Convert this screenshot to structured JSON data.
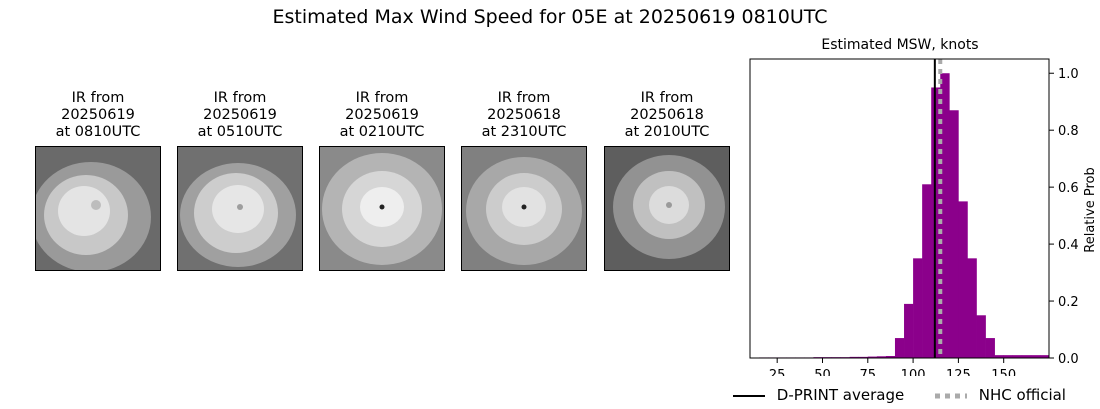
{
  "title": "Estimated Max Wind Speed for 05E at 20250619 0810UTC",
  "ir_panels": [
    {
      "caption": "IR from\n20250619\nat 0810UTC"
    },
    {
      "caption": "IR from\n20250619\nat 0510UTC"
    },
    {
      "caption": "IR from\n20250619\nat 0210UTC"
    },
    {
      "caption": "IR from\n20250618\nat 2310UTC"
    },
    {
      "caption": "IR from\n20250618\nat 2010UTC"
    }
  ],
  "chart_data": {
    "type": "bar",
    "title": "Estimated MSW, knots",
    "xlabel": "",
    "ylabel": "Relative Prob",
    "xlim": [
      10,
      175
    ],
    "ylim": [
      0,
      1.05
    ],
    "x_ticks": [
      25,
      50,
      75,
      100,
      125,
      150
    ],
    "y_ticks": [
      0.0,
      0.2,
      0.4,
      0.6,
      0.8,
      1.0
    ],
    "y_axis_side": "right",
    "bar_color": "#8b008b",
    "bin_width": 5,
    "bins": [
      15,
      20,
      25,
      30,
      35,
      40,
      45,
      50,
      55,
      60,
      65,
      70,
      75,
      80,
      85,
      90,
      95,
      100,
      105,
      110,
      115,
      120,
      125,
      130,
      135,
      140,
      145,
      150,
      155,
      160,
      165,
      170
    ],
    "values": [
      0.002,
      0.002,
      0.002,
      0.002,
      0.002,
      0.002,
      0.003,
      0.003,
      0.003,
      0.003,
      0.004,
      0.004,
      0.005,
      0.006,
      0.007,
      0.07,
      0.19,
      0.35,
      0.61,
      0.95,
      1.0,
      0.87,
      0.55,
      0.35,
      0.15,
      0.07,
      0.01,
      0.01,
      0.01,
      0.01,
      0.01,
      0.01
    ],
    "dprint_average": 112,
    "nhc_official": 115,
    "legend": [
      {
        "label": "D-PRINT average",
        "style": "solid",
        "color": "#000000"
      },
      {
        "label": "NHC official",
        "style": "dotted",
        "color": "#aaaaaa"
      }
    ]
  }
}
